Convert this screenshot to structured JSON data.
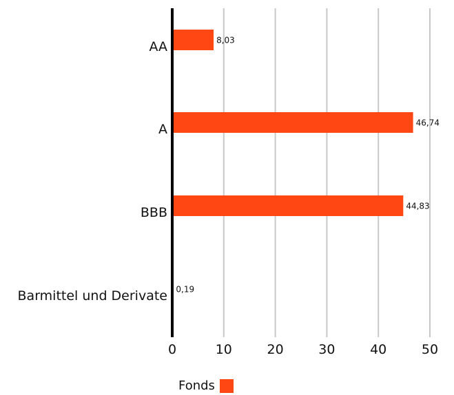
{
  "chart_data": {
    "type": "bar",
    "orientation": "horizontal",
    "categories": [
      "AA",
      "A",
      "BBB",
      "Barmittel und Derivate"
    ],
    "series": [
      {
        "name": "Fonds",
        "values": [
          8.03,
          46.74,
          44.83,
          0.19
        ],
        "value_labels": [
          "8,03",
          "46,74",
          "44,83",
          "0,19"
        ],
        "color": "#FF4713"
      }
    ],
    "xlim": [
      0,
      50
    ],
    "xticks": [
      0,
      10,
      20,
      30,
      40,
      50
    ],
    "xtick_labels": [
      "0",
      "10",
      "20",
      "30",
      "40",
      "50"
    ],
    "grid": "vertical",
    "legend": {
      "position": "bottom",
      "entries": [
        "Fonds"
      ]
    }
  }
}
